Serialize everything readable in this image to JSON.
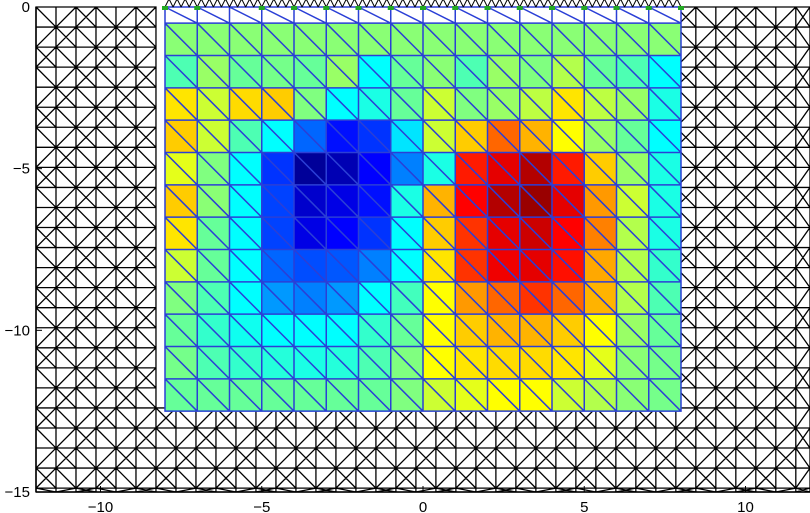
{
  "chart_data": {
    "type": "heatmap",
    "title": "",
    "xlabel": "",
    "ylabel": "",
    "xlim": [
      -12,
      12
    ],
    "ylim": [
      -15,
      0
    ],
    "x_ticks": [
      -10,
      -5,
      0,
      5,
      10
    ],
    "y_ticks": [
      0,
      -5,
      -10,
      -15
    ],
    "x_tick_labels": [
      "−10",
      "−5",
      "0",
      "5",
      "10"
    ],
    "y_tick_labels": [
      "0",
      "−5",
      "−10",
      "−15"
    ],
    "grid": false,
    "outer_mesh_color": "#000000",
    "inner_mesh_color": "#2b3fd6",
    "electrode_color": "#22aa22",
    "electrode_x": [
      -8,
      -7,
      -5,
      -4,
      -3,
      -2,
      -1,
      0,
      1,
      2,
      3,
      4,
      5,
      6,
      7,
      8
    ],
    "colormap": "jet",
    "value_range": [
      -1,
      1
    ],
    "cell_grid": {
      "x_edges": [
        -8,
        -7,
        -6,
        -5,
        -4,
        -3,
        -2,
        -1,
        0,
        1,
        2,
        3,
        4,
        5,
        6,
        7,
        8
      ],
      "y_edges": [
        -0.5,
        -1.5,
        -2.5,
        -3.5,
        -4.5,
        -5.5,
        -6.5,
        -7.5,
        -8.5,
        -9.5,
        -10.5,
        -11.5,
        -12.5
      ],
      "values": [
        [
          0.02,
          0.02,
          0.02,
          0.02,
          0.02,
          0.02,
          0.02,
          0.02,
          0.02,
          0.02,
          0.02,
          0.02,
          0.02,
          0.02,
          0.02,
          0.02
        ],
        [
          -0.1,
          0.05,
          -0.05,
          -0.02,
          -0.05,
          0.05,
          -0.25,
          -0.05,
          0.02,
          -0.1,
          0.05,
          0.0,
          0.1,
          -0.05,
          -0.1,
          -0.25
        ],
        [
          0.3,
          0.15,
          0.32,
          0.35,
          0.0,
          -0.25,
          -0.2,
          -0.05,
          0.15,
          0.0,
          0.05,
          0.12,
          0.3,
          0.12,
          0.05,
          -0.2
        ],
        [
          0.35,
          0.15,
          -0.1,
          -0.25,
          -0.55,
          -0.72,
          -0.65,
          -0.3,
          0.15,
          0.35,
          0.55,
          0.4,
          0.25,
          0.05,
          -0.05,
          -0.25
        ],
        [
          0.2,
          0.0,
          -0.25,
          -0.65,
          -0.95,
          -0.9,
          -0.75,
          -0.5,
          -0.2,
          0.7,
          0.8,
          0.9,
          0.7,
          0.35,
          0.05,
          -0.2
        ],
        [
          0.35,
          0.02,
          -0.25,
          -0.62,
          -0.85,
          -0.8,
          -0.72,
          -0.2,
          0.4,
          0.75,
          0.9,
          0.95,
          0.8,
          0.45,
          0.15,
          -0.2
        ],
        [
          0.3,
          -0.05,
          -0.25,
          -0.62,
          -0.8,
          -0.75,
          -0.65,
          -0.25,
          0.35,
          0.65,
          0.8,
          0.85,
          0.75,
          0.5,
          0.1,
          -0.2
        ],
        [
          0.15,
          -0.05,
          -0.25,
          -0.55,
          -0.6,
          -0.58,
          -0.5,
          -0.25,
          0.3,
          0.65,
          0.78,
          0.8,
          0.72,
          0.42,
          0.1,
          -0.15
        ],
        [
          0.0,
          -0.1,
          -0.25,
          -0.45,
          -0.5,
          -0.45,
          -0.25,
          -0.12,
          0.25,
          0.45,
          0.55,
          0.65,
          0.55,
          0.4,
          0.1,
          -0.1
        ],
        [
          -0.05,
          -0.15,
          -0.22,
          -0.25,
          -0.25,
          -0.25,
          -0.15,
          -0.05,
          0.25,
          0.35,
          0.4,
          0.4,
          0.35,
          0.25,
          0.05,
          -0.05
        ],
        [
          -0.02,
          -0.1,
          -0.15,
          -0.18,
          -0.2,
          -0.18,
          -0.1,
          0.0,
          0.25,
          0.3,
          0.32,
          0.32,
          0.3,
          0.2,
          0.02,
          -0.02
        ],
        [
          -0.05,
          -0.05,
          -0.05,
          -0.05,
          -0.05,
          -0.05,
          -0.05,
          0.0,
          0.15,
          0.2,
          0.25,
          0.25,
          0.15,
          0.1,
          0.02,
          -0.02
        ]
      ]
    }
  }
}
